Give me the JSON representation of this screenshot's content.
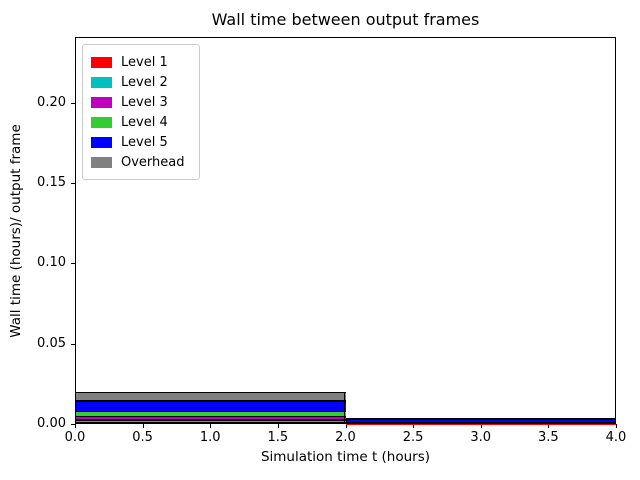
{
  "figure": {
    "background": "#ffffff"
  },
  "chart_data": {
    "type": "bar",
    "stacked": true,
    "title": "Wall time between output frames",
    "xlabel": "Simulation time t (hours)",
    "ylabel": "Wall time (hours)/ output frame",
    "xlim": [
      0,
      4
    ],
    "ylim": [
      0,
      0.2411
    ],
    "grid": false,
    "legend_position": "upper-left",
    "bar_edge_color": "#000000",
    "xticks": [
      0,
      0.5,
      1,
      1.5,
      2,
      2.5,
      3,
      3.5,
      4
    ],
    "xtick_labels": [
      "0.0",
      "0.5",
      "1.0",
      "1.5",
      "2.0",
      "2.5",
      "3.0",
      "3.5",
      "4.0"
    ],
    "yticks": [
      0,
      0.05,
      0.1,
      0.15,
      0.2
    ],
    "ytick_labels": [
      "0.00",
      "0.05",
      "0.10",
      "0.15",
      "0.20"
    ],
    "bars": [
      {
        "x_start": 0,
        "x_end": 2
      },
      {
        "x_start": 2,
        "x_end": 4
      }
    ],
    "series": [
      {
        "name": "Level 1",
        "color": "#ff0000",
        "values": [
          0.0006,
          0.0002
        ]
      },
      {
        "name": "Level 2",
        "color": "#00bfbf",
        "values": [
          0.0019,
          0.0002
        ]
      },
      {
        "name": "Level 3",
        "color": "#bf00bf",
        "values": [
          0.0021,
          0.0003
        ]
      },
      {
        "name": "Level 4",
        "color": "#33cc33",
        "values": [
          0.0031,
          0.0004
        ]
      },
      {
        "name": "Level 5",
        "color": "#0000ff",
        "values": [
          0.0066,
          0.0019
        ]
      },
      {
        "name": "Overhead",
        "color": "#808080",
        "values": [
          0.0053,
          0.0006
        ]
      }
    ]
  }
}
